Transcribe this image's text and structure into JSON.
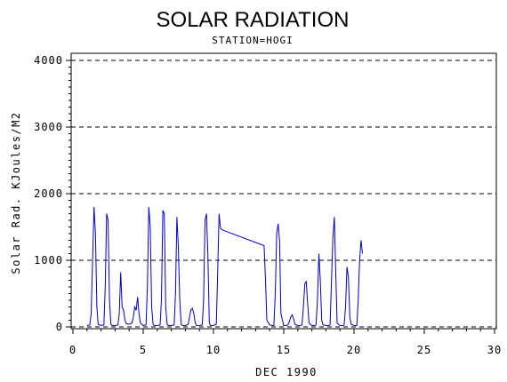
{
  "chart_data": {
    "type": "line",
    "title": "SOLAR RADIATION",
    "subtitle": "STATION=HOGI",
    "xlabel": "DEC 1990",
    "ylabel": "Solar Rad. KJoules/M2",
    "xlim": [
      0,
      30
    ],
    "ylim": [
      0,
      4000
    ],
    "xticks": [
      0,
      5,
      10,
      15,
      20,
      25,
      30
    ],
    "yticks": [
      0,
      1000,
      2000,
      3000,
      4000
    ],
    "grid": "horizontal-dashed",
    "series": [
      {
        "color": "#0000cc",
        "x": [
          1.0,
          1.2,
          1.3,
          1.4,
          1.5,
          1.6,
          1.7,
          1.8,
          2.0,
          2.2,
          2.3,
          2.4,
          2.5,
          2.6,
          2.7,
          2.8,
          3.0,
          3.2,
          3.3,
          3.4,
          3.5,
          3.6,
          3.7,
          3.8,
          4.0,
          4.2,
          4.3,
          4.4,
          4.5,
          4.6,
          4.7,
          4.8,
          5.0,
          5.2,
          5.3,
          5.4,
          5.5,
          5.6,
          5.7,
          5.8,
          6.0,
          6.2,
          6.3,
          6.4,
          6.5,
          6.6,
          6.7,
          6.8,
          7.0,
          7.2,
          7.3,
          7.4,
          7.5,
          7.6,
          7.7,
          7.8,
          8.0,
          8.2,
          8.3,
          8.4,
          8.5,
          8.6,
          8.7,
          8.8,
          9.0,
          9.2,
          9.3,
          9.4,
          9.5,
          9.6,
          9.7,
          9.8,
          10.0,
          10.2,
          10.3,
          10.4,
          10.5,
          10.6,
          10.7,
          13.6,
          13.7,
          13.8,
          14.0,
          14.2,
          14.3,
          14.4,
          14.5,
          14.6,
          14.7,
          14.8,
          15.0,
          15.2,
          15.3,
          15.4,
          15.5,
          15.6,
          15.7,
          15.8,
          16.0,
          16.2,
          16.3,
          16.4,
          16.5,
          16.6,
          16.7,
          16.8,
          17.0,
          17.2,
          17.3,
          17.4,
          17.5,
          17.6,
          17.7,
          17.8,
          18.0,
          18.2,
          18.3,
          18.4,
          18.5,
          18.6,
          18.7,
          18.8,
          19.0,
          19.2,
          19.3,
          19.4,
          19.5,
          19.6,
          19.7,
          19.8,
          20.0,
          20.2,
          20.3,
          20.4,
          20.5,
          20.6
        ],
        "y": [
          20,
          30,
          200,
          1000,
          1800,
          1400,
          300,
          40,
          20,
          30,
          600,
          1700,
          1600,
          400,
          40,
          20,
          20,
          30,
          200,
          820,
          300,
          250,
          100,
          50,
          40,
          60,
          150,
          300,
          250,
          450,
          200,
          60,
          20,
          30,
          600,
          1800,
          1500,
          300,
          40,
          20,
          20,
          30,
          400,
          1750,
          1700,
          300,
          40,
          20,
          20,
          30,
          500,
          1650,
          1200,
          400,
          40,
          20,
          20,
          40,
          150,
          260,
          280,
          200,
          60,
          20,
          20,
          30,
          400,
          1600,
          1700,
          1100,
          60,
          20,
          20,
          40,
          800,
          1700,
          1480,
          1460,
          1450,
          1220,
          700,
          100,
          30,
          20,
          20,
          500,
          1400,
          1550,
          1300,
          200,
          20,
          20,
          30,
          80,
          150,
          180,
          120,
          40,
          20,
          20,
          30,
          300,
          650,
          680,
          350,
          60,
          20,
          20,
          30,
          400,
          1100,
          700,
          100,
          30,
          20,
          20,
          30,
          700,
          1350,
          1650,
          800,
          60,
          20,
          20,
          30,
          300,
          900,
          750,
          150,
          40,
          20,
          20,
          400,
          1000,
          1300,
          1100
        ]
      }
    ]
  }
}
